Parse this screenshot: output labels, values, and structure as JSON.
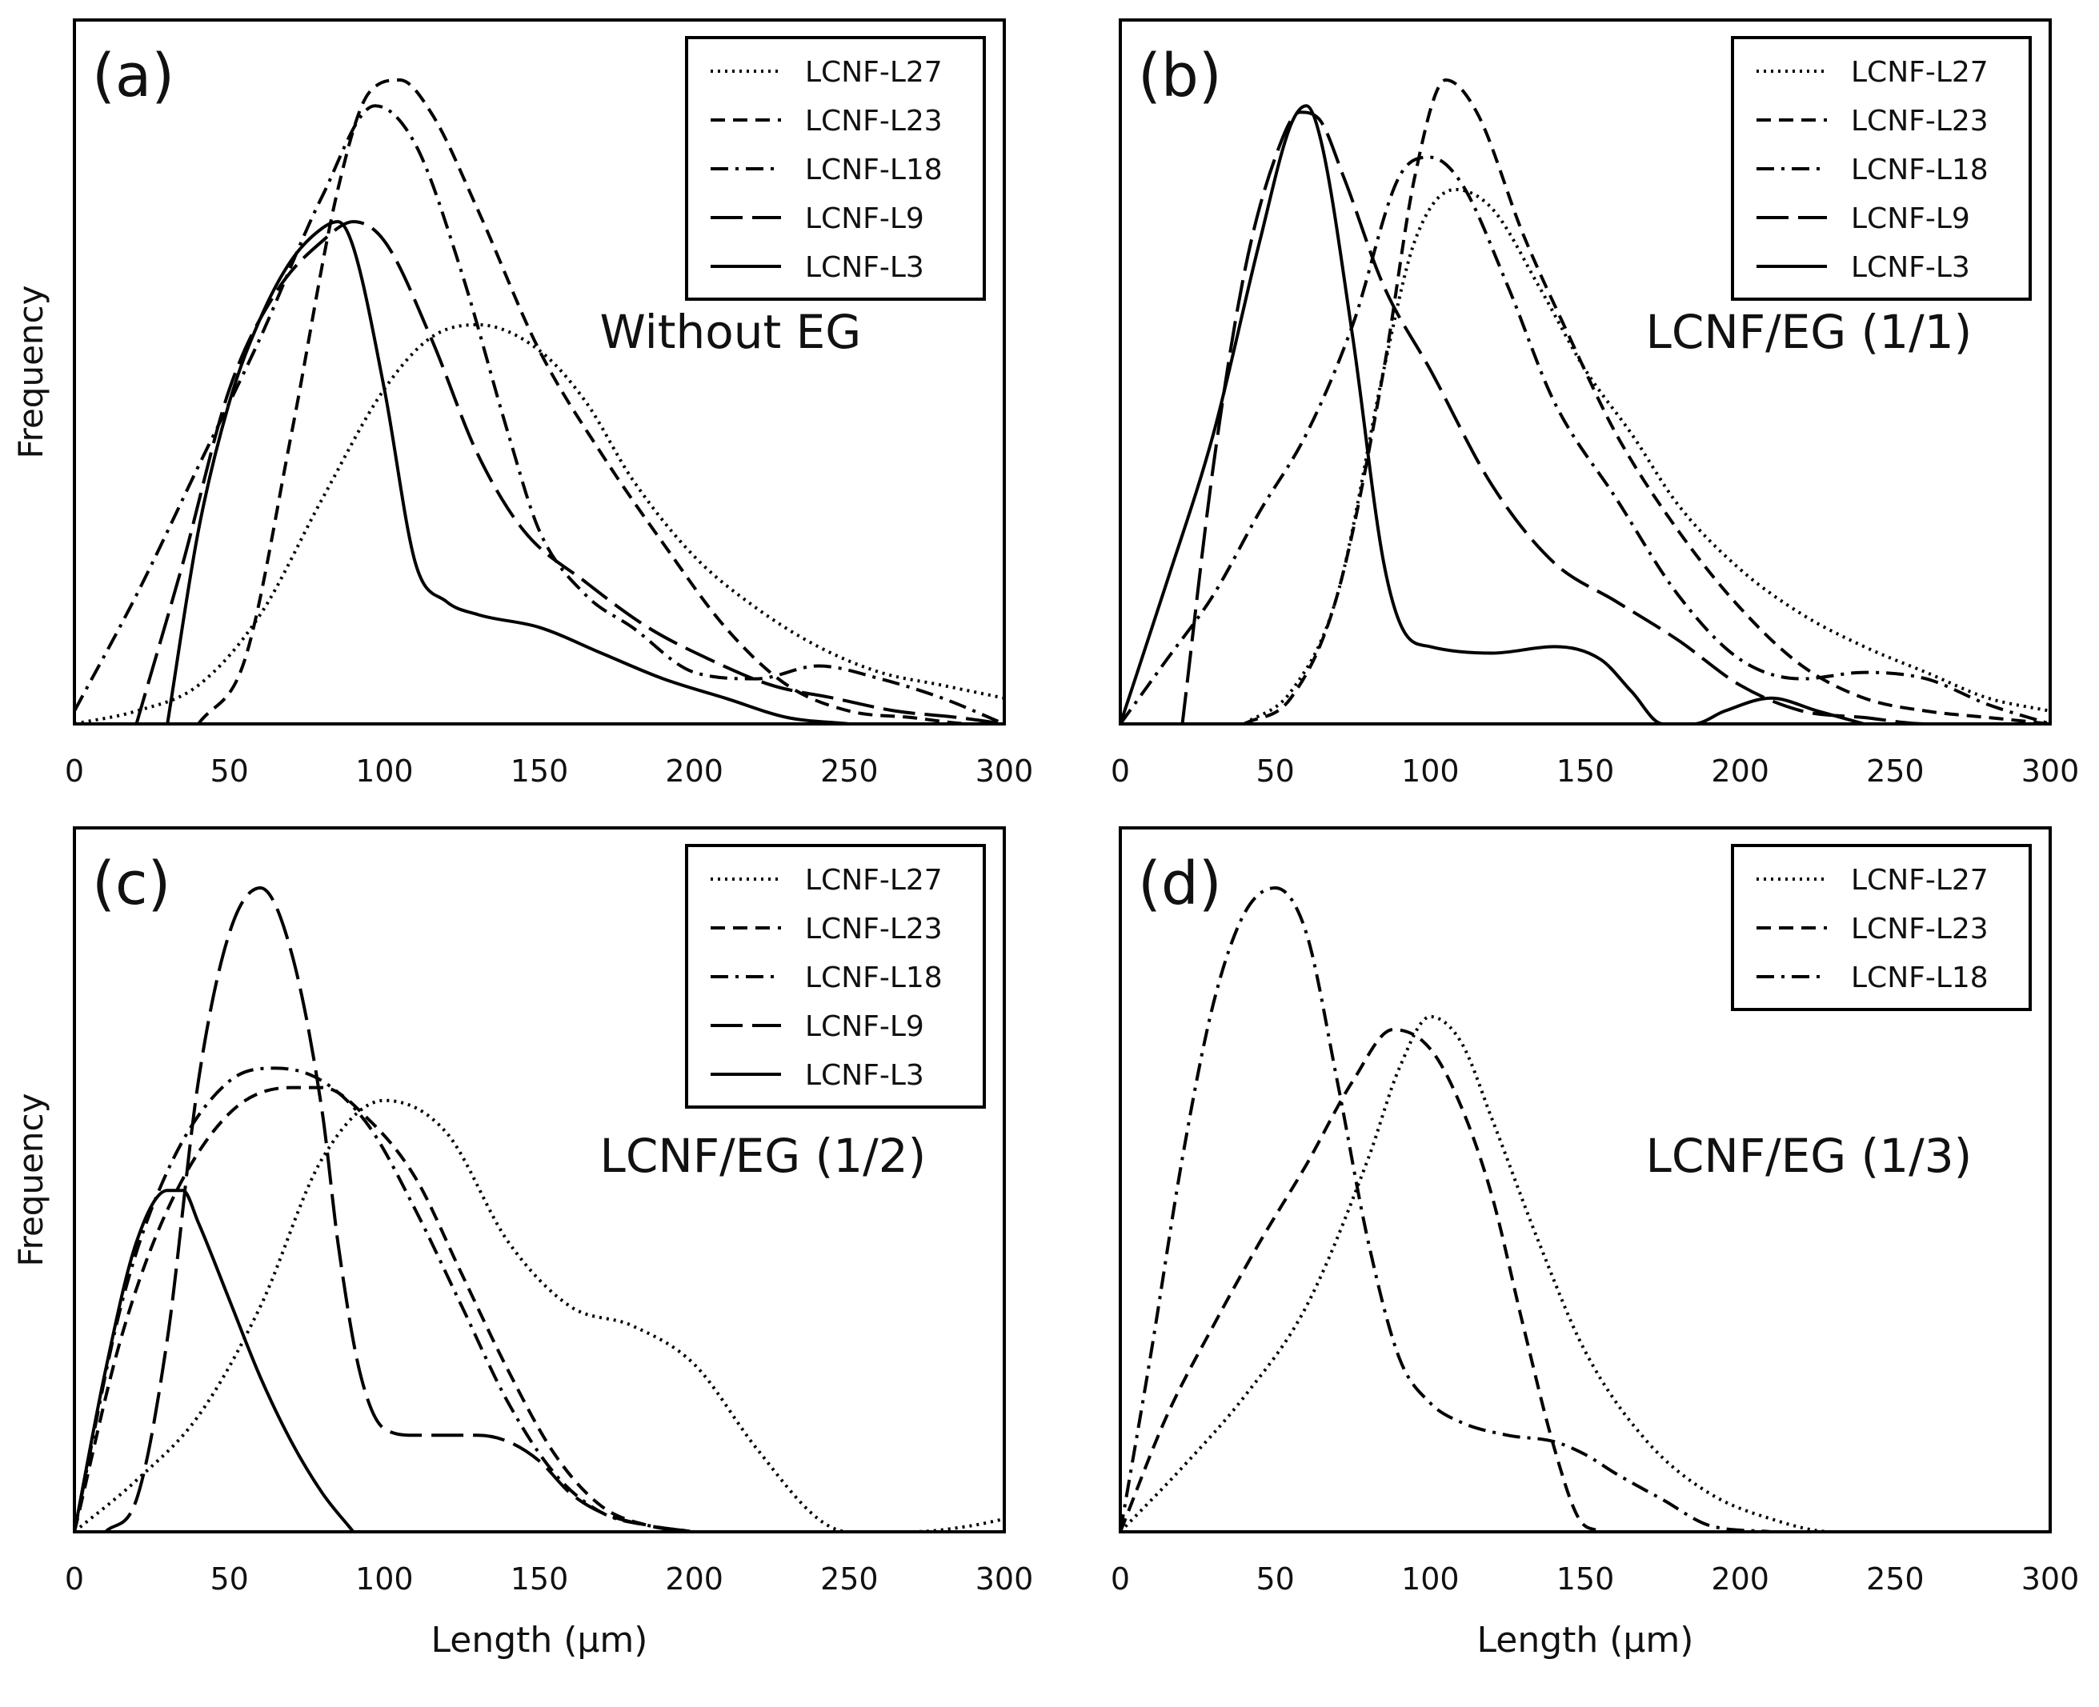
{
  "figure": {
    "frequency_label": "Frequency",
    "length_label": "Length (µm)"
  },
  "styles": {
    "LCNF-L27": "dotted",
    "LCNF-L23": "dashed",
    "LCNF-L18": "dashdot",
    "LCNF-L9": "longdash",
    "LCNF-L3": "solid"
  },
  "chart_data": [
    {
      "panel": "(a)",
      "type": "line",
      "annotation": "Without EG",
      "xlim": [
        0,
        300
      ],
      "xticks": [
        0,
        50,
        100,
        150,
        200,
        250,
        300
      ],
      "ylabel": "Frequency",
      "xlabel": "",
      "legend_position": "top-right",
      "series": [
        {
          "name": "LCNF-L27",
          "x": [
            0,
            20,
            40,
            60,
            80,
            100,
            115,
            130,
            150,
            165,
            180,
            200,
            220,
            240,
            260,
            280,
            300
          ],
          "y": [
            0.0,
            0.02,
            0.06,
            0.17,
            0.35,
            0.52,
            0.6,
            0.62,
            0.58,
            0.5,
            0.38,
            0.26,
            0.18,
            0.12,
            0.08,
            0.06,
            0.04
          ]
        },
        {
          "name": "LCNF-L23",
          "x": [
            40,
            55,
            70,
            85,
            95,
            105,
            115,
            130,
            150,
            170,
            190,
            210,
            230,
            250,
            270,
            290,
            300
          ],
          "y": [
            0.0,
            0.1,
            0.45,
            0.83,
            0.98,
            1.0,
            0.95,
            0.8,
            0.58,
            0.42,
            0.28,
            0.15,
            0.06,
            0.02,
            0.01,
            0.0,
            0.0
          ]
        },
        {
          "name": "LCNF-L18",
          "x": [
            0,
            20,
            40,
            60,
            80,
            97,
            110,
            125,
            140,
            150,
            165,
            180,
            200,
            220,
            240,
            260,
            280,
            300
          ],
          "y": [
            0.02,
            0.2,
            0.4,
            0.6,
            0.82,
            0.96,
            0.9,
            0.7,
            0.45,
            0.3,
            0.2,
            0.15,
            0.08,
            0.07,
            0.09,
            0.07,
            0.04,
            0.0
          ]
        },
        {
          "name": "LCNF-L9",
          "x": [
            20,
            35,
            50,
            65,
            80,
            90,
            100,
            115,
            130,
            145,
            165,
            185,
            205,
            225,
            245,
            265,
            285,
            300
          ],
          "y": [
            0.0,
            0.25,
            0.52,
            0.67,
            0.75,
            0.78,
            0.75,
            0.6,
            0.42,
            0.3,
            0.22,
            0.15,
            0.1,
            0.06,
            0.04,
            0.02,
            0.01,
            0.0
          ]
        },
        {
          "name": "LCNF-L3",
          "x": [
            30,
            40,
            50,
            60,
            70,
            80,
            85,
            90,
            100,
            110,
            120,
            130,
            150,
            170,
            190,
            210,
            230,
            250
          ],
          "y": [
            0.0,
            0.3,
            0.5,
            0.63,
            0.72,
            0.77,
            0.78,
            0.74,
            0.52,
            0.25,
            0.19,
            0.17,
            0.15,
            0.11,
            0.07,
            0.04,
            0.01,
            0.0
          ]
        }
      ]
    },
    {
      "panel": "(b)",
      "type": "line",
      "annotation": "LCNF/EG (1/1)",
      "xlim": [
        0,
        300
      ],
      "xticks": [
        0,
        50,
        100,
        150,
        200,
        250,
        300
      ],
      "ylabel": "",
      "xlabel": "",
      "legend_position": "top-right",
      "series": [
        {
          "name": "LCNF-L27",
          "x": [
            40,
            55,
            70,
            85,
            95,
            108,
            120,
            135,
            150,
            165,
            180,
            200,
            220,
            240,
            260,
            280,
            300
          ],
          "y": [
            0.0,
            0.05,
            0.2,
            0.55,
            0.75,
            0.83,
            0.8,
            0.68,
            0.55,
            0.45,
            0.34,
            0.24,
            0.17,
            0.12,
            0.08,
            0.04,
            0.02
          ]
        },
        {
          "name": "LCNF-L23",
          "x": [
            40,
            55,
            70,
            85,
            95,
            105,
            115,
            130,
            145,
            160,
            180,
            200,
            220,
            240,
            260,
            280,
            300
          ],
          "y": [
            0.0,
            0.04,
            0.2,
            0.55,
            0.85,
            1.0,
            0.95,
            0.76,
            0.6,
            0.45,
            0.3,
            0.18,
            0.09,
            0.04,
            0.02,
            0.01,
            0.0
          ]
        },
        {
          "name": "LCNF-L18",
          "x": [
            0,
            15,
            30,
            45,
            60,
            75,
            90,
            100,
            110,
            125,
            140,
            160,
            180,
            200,
            220,
            240,
            260,
            280,
            300
          ],
          "y": [
            0.0,
            0.1,
            0.2,
            0.33,
            0.45,
            0.62,
            0.85,
            0.88,
            0.84,
            0.68,
            0.5,
            0.35,
            0.2,
            0.1,
            0.07,
            0.08,
            0.07,
            0.03,
            0.0
          ]
        },
        {
          "name": "LCNF-L9",
          "x": [
            20,
            30,
            40,
            50,
            58,
            64,
            72,
            85,
            100,
            120,
            140,
            160,
            180,
            200,
            220,
            240,
            260,
            280,
            300
          ],
          "y": [
            0.0,
            0.4,
            0.7,
            0.88,
            0.95,
            0.94,
            0.85,
            0.68,
            0.55,
            0.37,
            0.25,
            0.19,
            0.13,
            0.06,
            0.02,
            0.01,
            0.0,
            0.0,
            0.0
          ]
        },
        {
          "name": "LCNF-L3",
          "x": [
            0,
            15,
            30,
            45,
            55,
            60,
            65,
            75,
            85,
            92,
            100,
            120,
            140,
            155,
            165,
            175,
            185,
            195,
            210,
            225,
            240
          ],
          "y": [
            0.0,
            0.22,
            0.45,
            0.75,
            0.93,
            0.96,
            0.9,
            0.6,
            0.25,
            0.14,
            0.12,
            0.11,
            0.12,
            0.1,
            0.05,
            0.0,
            0.0,
            0.02,
            0.04,
            0.02,
            0.0
          ]
        }
      ]
    },
    {
      "panel": "(c)",
      "type": "line",
      "annotation": "LCNF/EG (1/2)",
      "xlim": [
        0,
        300
      ],
      "xticks": [
        0,
        50,
        100,
        150,
        200,
        250,
        300
      ],
      "ylabel": "Frequency",
      "xlabel": "Length (µm)",
      "legend_position": "top-right",
      "series": [
        {
          "name": "LCNF-L27",
          "x": [
            0,
            20,
            40,
            60,
            80,
            100,
            120,
            140,
            160,
            180,
            200,
            220,
            240,
            250,
            270,
            290,
            300
          ],
          "y": [
            0.0,
            0.08,
            0.18,
            0.35,
            0.58,
            0.67,
            0.62,
            0.45,
            0.35,
            0.32,
            0.26,
            0.13,
            0.02,
            0.0,
            0.0,
            0.01,
            0.02
          ]
        },
        {
          "name": "LCNF-L23",
          "x": [
            0,
            15,
            30,
            50,
            70,
            80,
            95,
            110,
            125,
            140,
            155,
            170,
            185,
            200
          ],
          "y": [
            0.0,
            0.3,
            0.5,
            0.65,
            0.69,
            0.69,
            0.64,
            0.55,
            0.4,
            0.25,
            0.12,
            0.04,
            0.01,
            0.0
          ]
        },
        {
          "name": "LCNF-L18",
          "x": [
            0,
            15,
            30,
            50,
            65,
            80,
            95,
            110,
            125,
            140,
            155,
            170,
            185,
            200
          ],
          "y": [
            0.0,
            0.35,
            0.56,
            0.7,
            0.72,
            0.7,
            0.63,
            0.5,
            0.35,
            0.2,
            0.09,
            0.03,
            0.01,
            0.0
          ]
        },
        {
          "name": "LCNF-L9",
          "x": [
            10,
            20,
            30,
            40,
            50,
            60,
            70,
            80,
            85,
            92,
            100,
            110,
            130,
            140,
            150,
            160,
            170,
            185,
            200
          ],
          "y": [
            0.0,
            0.05,
            0.3,
            0.7,
            0.93,
            1.0,
            0.9,
            0.65,
            0.45,
            0.25,
            0.16,
            0.15,
            0.15,
            0.14,
            0.11,
            0.06,
            0.03,
            0.01,
            0.0
          ]
        },
        {
          "name": "LCNF-L3",
          "x": [
            0,
            10,
            20,
            30,
            35,
            40,
            50,
            60,
            70,
            80,
            90
          ],
          "y": [
            0.0,
            0.25,
            0.45,
            0.53,
            0.53,
            0.48,
            0.36,
            0.24,
            0.14,
            0.06,
            0.0
          ]
        }
      ]
    },
    {
      "panel": "(d)",
      "type": "line",
      "annotation": "LCNF/EG (1/3)",
      "xlim": [
        0,
        300
      ],
      "xticks": [
        0,
        50,
        100,
        150,
        200,
        250,
        300
      ],
      "ylabel": "",
      "xlabel": "Length (µm)",
      "legend_position": "top-right",
      "series": [
        {
          "name": "LCNF-L27",
          "x": [
            0,
            20,
            40,
            60,
            80,
            90,
            100,
            110,
            120,
            135,
            150,
            170,
            190,
            210,
            230,
            250,
            270,
            300
          ],
          "y": [
            0.0,
            0.1,
            0.21,
            0.35,
            0.58,
            0.72,
            0.8,
            0.76,
            0.64,
            0.45,
            0.28,
            0.14,
            0.06,
            0.02,
            0.0,
            0.0,
            0.0,
            0.0
          ]
        },
        {
          "name": "LCNF-L23",
          "x": [
            0,
            15,
            30,
            45,
            60,
            75,
            88,
            100,
            110,
            120,
            130,
            140,
            148,
            155
          ],
          "y": [
            0.0,
            0.18,
            0.32,
            0.45,
            0.57,
            0.7,
            0.78,
            0.75,
            0.66,
            0.52,
            0.32,
            0.13,
            0.02,
            0.0
          ]
        },
        {
          "name": "LCNF-L18",
          "x": [
            0,
            10,
            20,
            30,
            40,
            50,
            60,
            70,
            80,
            90,
            100,
            110,
            125,
            140,
            150,
            160,
            175,
            190,
            210
          ],
          "y": [
            0.0,
            0.28,
            0.58,
            0.82,
            0.96,
            1.0,
            0.93,
            0.7,
            0.45,
            0.27,
            0.2,
            0.17,
            0.15,
            0.14,
            0.12,
            0.09,
            0.05,
            0.01,
            0.0
          ]
        }
      ]
    }
  ]
}
